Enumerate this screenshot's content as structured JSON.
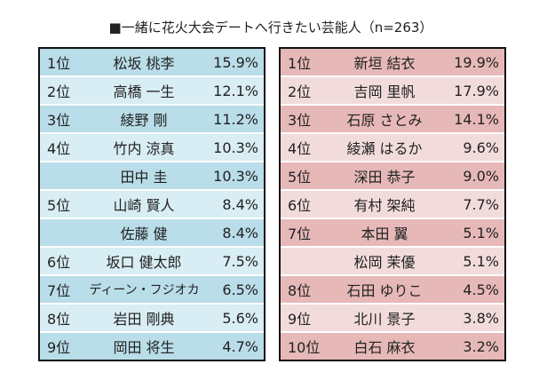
{
  "title": "■一緒に花火大会デートへ行きたい芸能人（n=263）",
  "male": [
    {
      "rank": "1位",
      "name": "松坂 桃李",
      "pct": "15.9%"
    },
    {
      "rank": "2位",
      "name": "高橋 一生",
      "pct": "12.1%"
    },
    {
      "rank": "3位",
      "name": "綾野 剛",
      "pct": "11.2%"
    },
    {
      "rank": "4位",
      "name": "竹内 涼真",
      "pct": "10.3%"
    },
    {
      "rank": "",
      "name": "田中 圭",
      "pct": "10.3%"
    },
    {
      "rank": "5位",
      "name": "山崎 賢人",
      "pct": "8.4%"
    },
    {
      "rank": "",
      "name": "佐藤 健",
      "pct": "8.4%"
    },
    {
      "rank": "6位",
      "name": "坂口 健太郎",
      "pct": "7.5%"
    },
    {
      "rank": "7位",
      "name": "ディーン・フジオカ",
      "pct": "6.5%"
    },
    {
      "rank": "8位",
      "name": "岩田 剛典",
      "pct": "5.6%"
    },
    {
      "rank": "9位",
      "name": "岡田 将生",
      "pct": "4.7%"
    }
  ],
  "female": [
    {
      "rank": "1位",
      "name": "新垣 結衣",
      "pct": "19.9%"
    },
    {
      "rank": "2位",
      "name": "吉岡 里帆",
      "pct": "17.9%"
    },
    {
      "rank": "3位",
      "name": "石原 さとみ",
      "pct": "14.1%"
    },
    {
      "rank": "4位",
      "name": "綾瀬 はるか",
      "pct": "9.6%"
    },
    {
      "rank": "5位",
      "name": "深田 恭子",
      "pct": "9.0%"
    },
    {
      "rank": "6位",
      "name": "有村 架純",
      "pct": "7.7%"
    },
    {
      "rank": "7位",
      "name": "本田 翼",
      "pct": "5.1%"
    },
    {
      "rank": "",
      "name": "松岡 茉優",
      "pct": "5.1%"
    },
    {
      "rank": "8位",
      "name": "石田 ゆりこ",
      "pct": "4.5%"
    },
    {
      "rank": "9位",
      "name": "北川 景子",
      "pct": "3.8%"
    },
    {
      "rank": "10位",
      "name": "白石 麻衣",
      "pct": "3.2%"
    }
  ]
}
